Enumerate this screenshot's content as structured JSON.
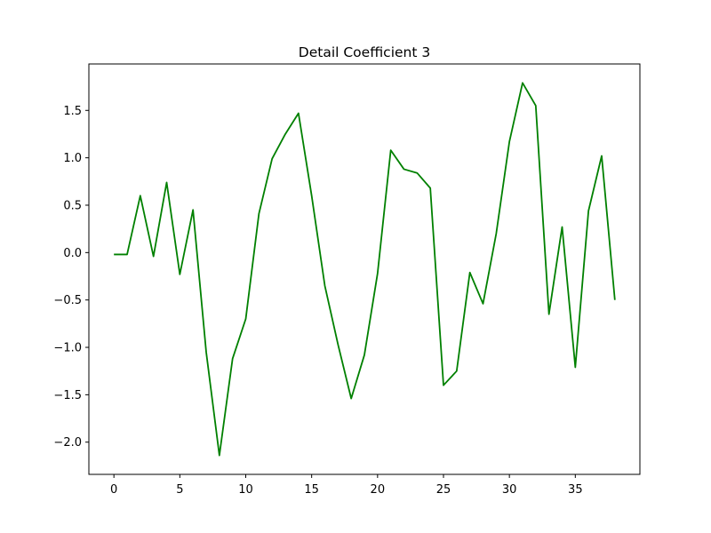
{
  "chart_data": {
    "type": "line",
    "title": "Detail Coefficient 3",
    "xlabel": "",
    "ylabel": "",
    "line_color": "#008000",
    "grid": false,
    "legend": "none",
    "xlim": [
      -1.9,
      39.9
    ],
    "ylim": [
      -2.34,
      1.99
    ],
    "x_ticks": [
      0,
      5,
      10,
      15,
      20,
      25,
      30,
      35
    ],
    "x_tick_labels": [
      "0",
      "5",
      "10",
      "15",
      "20",
      "25",
      "30",
      "35"
    ],
    "y_ticks": [
      -2.0,
      -1.5,
      -1.0,
      -0.5,
      0.0,
      0.5,
      1.0,
      1.5
    ],
    "y_tick_labels": [
      "−2.0",
      "−1.5",
      "−1.0",
      "−0.5",
      "0.0",
      "0.5",
      "1.0",
      "1.5"
    ],
    "x": [
      0,
      1,
      2,
      3,
      4,
      5,
      6,
      7,
      8,
      9,
      10,
      11,
      12,
      13,
      14,
      15,
      16,
      17,
      18,
      19,
      20,
      21,
      22,
      23,
      24,
      25,
      26,
      27,
      28,
      29,
      30,
      31,
      32,
      33,
      34,
      35,
      36,
      37,
      38
    ],
    "y": [
      -0.02,
      -0.02,
      0.6,
      -0.04,
      0.74,
      -0.23,
      0.45,
      -1.05,
      -2.14,
      -1.12,
      -0.7,
      0.41,
      0.99,
      1.25,
      1.47,
      0.6,
      -0.35,
      -0.97,
      -1.54,
      -1.08,
      -0.22,
      1.08,
      0.88,
      0.84,
      0.68,
      -1.4,
      -1.25,
      -0.21,
      -0.54,
      0.2,
      1.17,
      1.79,
      1.55,
      -0.65,
      0.27,
      -1.21,
      0.44,
      1.02,
      -0.5
    ]
  }
}
